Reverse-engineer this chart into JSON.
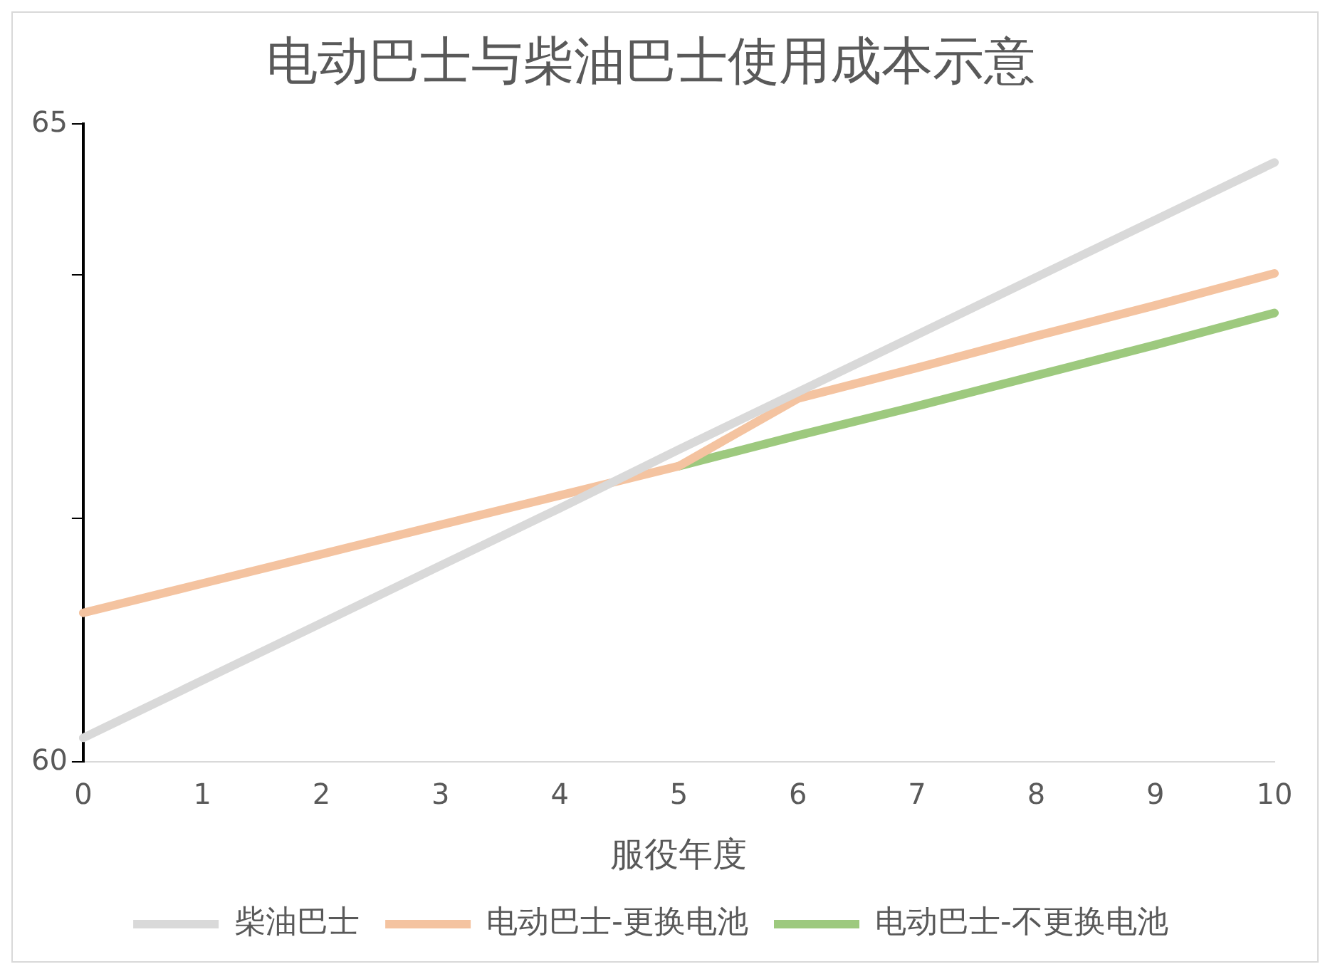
{
  "chart_data": {
    "type": "line",
    "title": "电动巴士与柴油巴士使用成本示意",
    "xlabel": "服役年度",
    "categories": [
      "0",
      "1",
      "2",
      "3",
      "4",
      "5",
      "6",
      "7",
      "8",
      "9",
      "10"
    ],
    "series": [
      {
        "name": "电动巴士-不更换电池",
        "color": "#9dc97e",
        "values": [
          null,
          null,
          null,
          null,
          null,
          62.32,
          62.56,
          62.79,
          63.03,
          63.27,
          63.52
        ]
      },
      {
        "name": "电动巴士-更换电池",
        "color": "#f4c3a0",
        "values": [
          61.17,
          61.4,
          61.63,
          61.86,
          62.09,
          62.32,
          62.85,
          63.09,
          63.34,
          63.58,
          63.83
        ]
      },
      {
        "name": "柴油巴士",
        "color": "#d9d9d9",
        "values": [
          60.19,
          60.64,
          61.09,
          61.54,
          61.99,
          62.45,
          62.9,
          63.35,
          63.8,
          64.25,
          64.7
        ]
      }
    ],
    "ylim": [
      60,
      65
    ],
    "yticks": [
      60,
      {
        "value": 61.91,
        "label": null
      },
      {
        "value": 63.82,
        "label": null
      },
      65
    ],
    "grid": false,
    "legend": "bottom",
    "marker": "none",
    "line_style": "solid"
  }
}
